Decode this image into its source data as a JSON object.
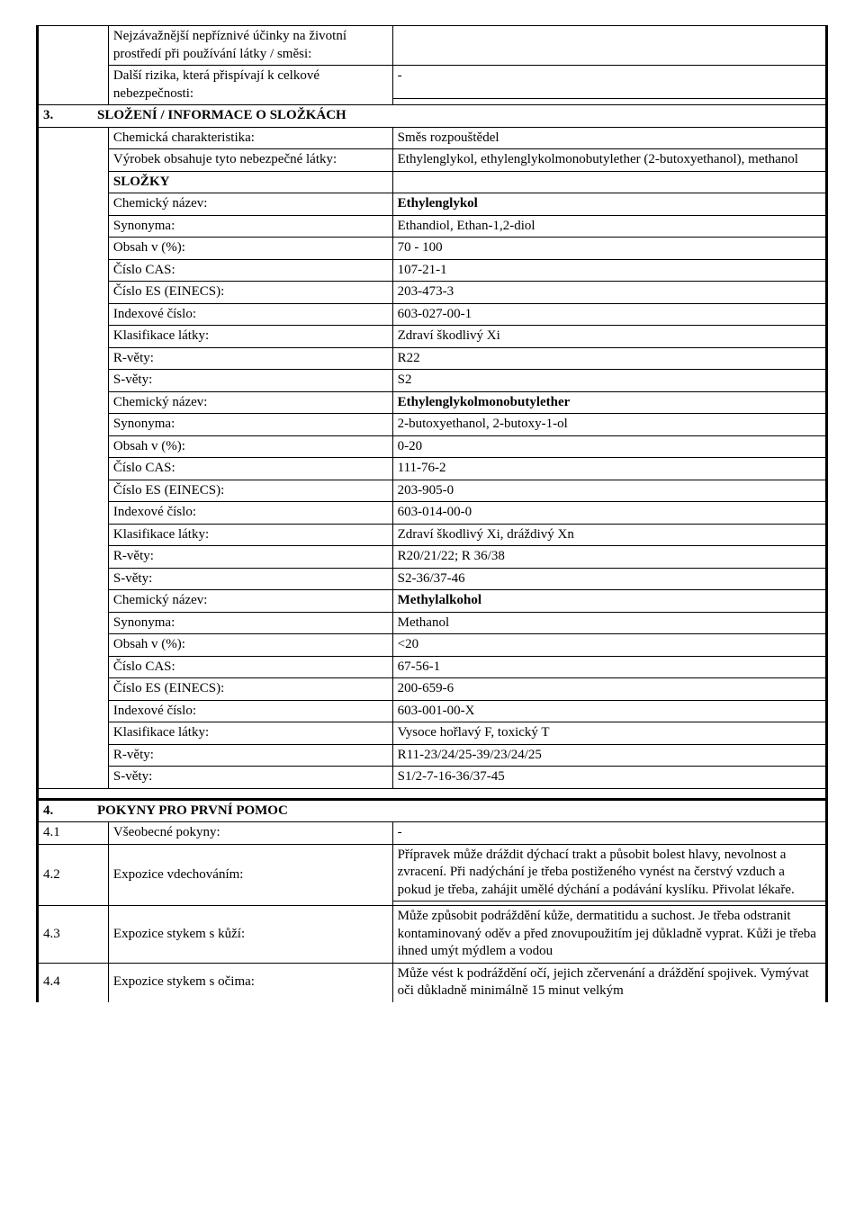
{
  "header_rows": [
    {
      "label": "Nejzávažnější nepříznivé účinky na životní prostředí při používání látky / směsi:",
      "value": ""
    },
    {
      "label": "Další rizika, která přispívají k celkové  nebezpečnosti:",
      "value": "-"
    }
  ],
  "section3": {
    "number": "3.",
    "title": "SLOŽENÍ / INFORMACE O SLOŽKÁCH",
    "rows": [
      {
        "label": "Chemická charakteristika:",
        "value": "Směs rozpouštědel"
      },
      {
        "label": "Výrobek obsahuje tyto nebezpečné látky:",
        "value": "Ethylenglykol, ethylenglykolmonobutylether (2-butoxyethanol), methanol"
      },
      {
        "label": "SLOŽKY",
        "value": "",
        "bold_label": true
      },
      {
        "label": "Chemický název:",
        "value": "Ethylenglykol",
        "bold_value": true
      },
      {
        "label": "Synonyma:",
        "value": "Ethandiol, Ethan-1,2-diol"
      },
      {
        "label": "Obsah v (%):",
        "value": "70 - 100"
      },
      {
        "label": "Číslo CAS:",
        "value": "107-21-1"
      },
      {
        "label": "Číslo ES  (EINECS):",
        "value": "203-473-3"
      },
      {
        "label": "Indexové číslo:",
        "value": "603-027-00-1"
      },
      {
        "label": "Klasifikace látky:",
        "value": "Zdraví škodlivý Xi"
      },
      {
        "label": "R-věty:",
        "value": "R22"
      },
      {
        "label": "S-věty:",
        "value": "S2"
      },
      {
        "label": "Chemický název:",
        "value": "Ethylenglykolmonobutylether",
        "bold_value": true
      },
      {
        "label": "Synonyma:",
        "value": "2-butoxyethanol, 2-butoxy-1-ol"
      },
      {
        "label": "Obsah v (%):",
        "value": "0-20"
      },
      {
        "label": "Číslo CAS:",
        "value": "111-76-2"
      },
      {
        "label": "Číslo ES  (EINECS):",
        "value": "203-905-0"
      },
      {
        "label": "Indexové číslo:",
        "value": "603-014-00-0"
      },
      {
        "label": "Klasifikace látky:",
        "value": "Zdraví škodlivý Xi, dráždivý Xn"
      },
      {
        "label": "R-věty:",
        "value": "R20/21/22; R 36/38"
      },
      {
        "label": "S-věty:",
        "value": "S2-36/37-46"
      },
      {
        "label": "Chemický název:",
        "value": "Methylalkohol",
        "bold_value": true
      },
      {
        "label": "Synonyma:",
        "value": "Methanol"
      },
      {
        "label": "Obsah v (%):",
        "value": "<20"
      },
      {
        "label": "Číslo CAS:",
        "value": "67-56-1"
      },
      {
        "label": "Číslo ES  (EINECS):",
        "value": "200-659-6"
      },
      {
        "label": "Indexové číslo:",
        "value": "603-001-00-X"
      },
      {
        "label": "Klasifikace látky:",
        "value": "Vysoce hořlavý F, toxický T"
      },
      {
        "label": "R-věty:",
        "value": "R11-23/24/25-39/23/24/25"
      },
      {
        "label": "S-věty:",
        "value": "S1/2-7-16-36/37-45"
      }
    ]
  },
  "section4": {
    "number": "4.",
    "title": "POKYNY PRO PRVNÍ POMOC",
    "rows": [
      {
        "num": "4.1",
        "label": "Všeobecné pokyny:",
        "value": "-"
      },
      {
        "num": "4.2",
        "label": "Expozice vdechováním:",
        "value": "Přípravek může dráždit  dýchací trakt a působit bolest hlavy, nevolnost a zvracení. Při nadýchání je třeba postiženého vynést na čerstvý vzduch a pokud je třeba, zahájit umělé dýchání a podávání kyslíku. Přivolat lékaře.",
        "extra_blank": true
      },
      {
        "num": "4.3",
        "label": "Expozice  stykem s kůží:",
        "value": "Může způsobit podráždění kůže, dermatitidu a suchost. Je třeba odstranit kontaminovaný oděv a před znovupoužitím jej důkladně vyprat. Kůži je třeba ihned umýt mýdlem a vodou"
      },
      {
        "num": "4.4",
        "label": "Expozice stykem s očima:",
        "value": "Může vést k podráždění očí, jejich zčervenání a dráždění spojivek. Vymývat oči důkladně minimálně 15 minut velkým"
      }
    ]
  }
}
